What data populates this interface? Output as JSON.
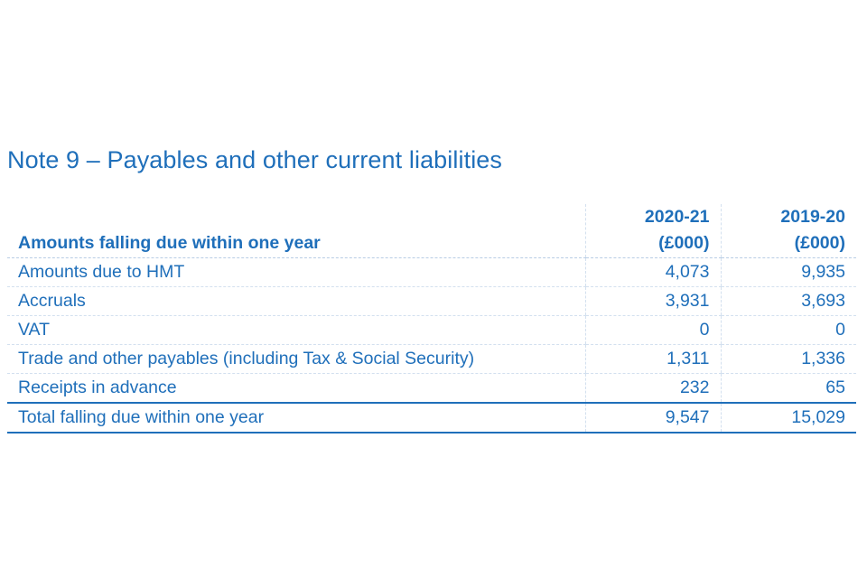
{
  "note": {
    "title": "Note 9 – Payables and other current liabilities"
  },
  "table": {
    "header": {
      "label": "Amounts falling due within one year",
      "col1": {
        "year": "2020-21",
        "unit": "(£000)"
      },
      "col2": {
        "year": "2019-20",
        "unit": "(£000)"
      }
    },
    "rows": [
      {
        "label": "Amounts due to HMT",
        "v1": "4,073",
        "v2": "9,935"
      },
      {
        "label": "Accruals",
        "v1": "3,931",
        "v2": "3,693"
      },
      {
        "label": "VAT",
        "v1": "0",
        "v2": "0"
      },
      {
        "label": "Trade and other payables (including Tax & Social Security)",
        "v1": "1,311",
        "v2": "1,336"
      },
      {
        "label": "Receipts in advance",
        "v1": "232",
        "v2": "65"
      }
    ],
    "total": {
      "label": "Total falling due within one year",
      "v1": "9,547",
      "v2": "15,029"
    }
  },
  "colors": {
    "text": "#1f6fba",
    "rule": "#1f6fba",
    "gridline": "#d3e0ef"
  }
}
